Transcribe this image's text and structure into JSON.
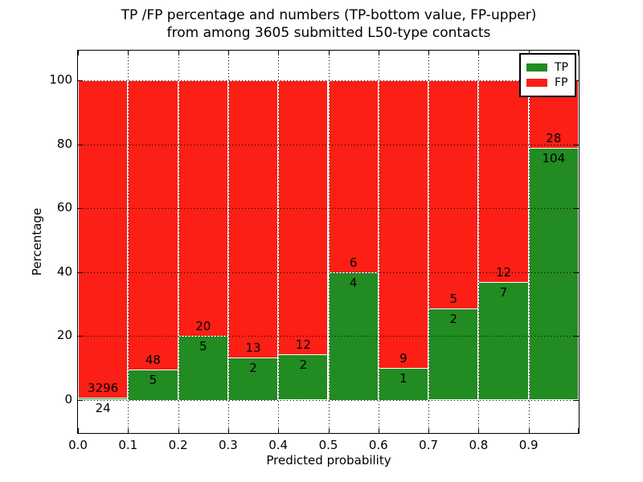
{
  "chart_data": {
    "type": "bar",
    "stacked": true,
    "title_line1": "TP /FP percentage and numbers (TP-bottom value, FP-upper)",
    "title_line2": "from among 3605 submitted L50-type contacts",
    "xlabel": "Predicted probability",
    "ylabel": "Percentage",
    "total_submitted_contacts": 3605,
    "note": "Bars show TP percentage of each bin (green, bottom) vs FP percentage (red, upper); labels give raw counts: TP below boundary, FP above",
    "bins": [
      {
        "range": "0.0-0.1",
        "tp": 24,
        "fp": 3296
      },
      {
        "range": "0.1-0.2",
        "tp": 5,
        "fp": 48
      },
      {
        "range": "0.2-0.3",
        "tp": 5,
        "fp": 20
      },
      {
        "range": "0.3-0.4",
        "tp": 2,
        "fp": 13
      },
      {
        "range": "0.4-0.5",
        "tp": 2,
        "fp": 12
      },
      {
        "range": "0.5-0.6",
        "tp": 4,
        "fp": 6
      },
      {
        "range": "0.6-0.7",
        "tp": 1,
        "fp": 9
      },
      {
        "range": "0.7-0.8",
        "tp": 2,
        "fp": 5
      },
      {
        "range": "0.8-0.9",
        "tp": 7,
        "fp": 12
      },
      {
        "range": "0.9-1.0",
        "tp": 104,
        "fp": 28
      }
    ],
    "series": [
      {
        "name": "TP",
        "color": "#228b22"
      },
      {
        "name": "FP",
        "color": "#fb1f15"
      }
    ],
    "x_ticks": [
      "0.0",
      "0.1",
      "0.2",
      "0.3",
      "0.4",
      "0.5",
      "0.6",
      "0.7",
      "0.8",
      "0.9"
    ],
    "y_ticks": [
      0,
      20,
      40,
      60,
      80,
      100
    ],
    "xlim": [
      0.0,
      1.0
    ],
    "ylim": [
      -10.8,
      109.5
    ],
    "grid": "dotted, drawn above bars",
    "legend_position": "upper right",
    "tick_direction": "in, all four spines"
  }
}
